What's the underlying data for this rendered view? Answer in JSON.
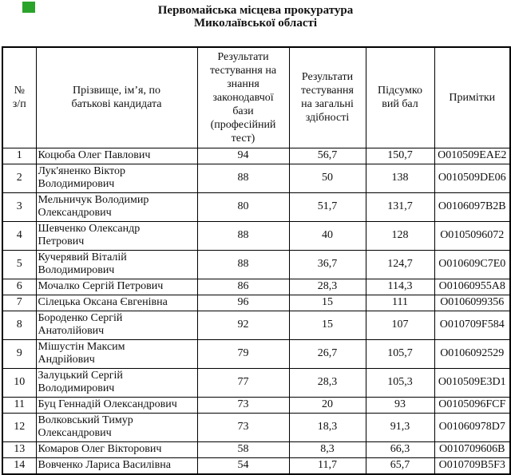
{
  "title": {
    "line1": "Первомайська місцева прокуратура",
    "line2": "Миколаївської області"
  },
  "marker": {
    "color": "#2aa32a"
  },
  "table": {
    "headers": [
      "№\nз/п",
      "Прізвище, ім’я, по\nбатькові кандидата",
      "Результати\nтестування на\nзнання\nзаконодавчої\nбази\n(професійний\nтест)",
      "Результати\nтестування\nна загальні\nздібності",
      "Підсумко\nвий бал",
      "Примітки"
    ],
    "rows": [
      {
        "num": "1",
        "name": "Коцюба Олег Павлович",
        "prof_test": "94",
        "general": "56,7",
        "total": "150,7",
        "note": "O010509EAE2"
      },
      {
        "num": "2",
        "name": "Лук'яненко Віктор\nВолодимирович",
        "prof_test": "88",
        "general": "50",
        "total": "138",
        "note": "O010509DE06"
      },
      {
        "num": "3",
        "name": "Мельничук Володимир\nОлександрович",
        "prof_test": "80",
        "general": "51,7",
        "total": "131,7",
        "note": "O0106097B2B"
      },
      {
        "num": "4",
        "name": "Шевченко Олександр\nПетрович",
        "prof_test": "88",
        "general": "40",
        "total": "128",
        "note": "O0105096072"
      },
      {
        "num": "5",
        "name": "Кучерявий Віталій\nВолодимирович",
        "prof_test": "88",
        "general": "36,7",
        "total": "124,7",
        "note": "O010609C7E0"
      },
      {
        "num": "6",
        "name": "Мочалко Сергій Петрович",
        "prof_test": "86",
        "general": "28,3",
        "total": "114,3",
        "note": "O01060955A8"
      },
      {
        "num": "7",
        "name": "Сілецька Оксана Євгенівна",
        "prof_test": "96",
        "general": "15",
        "total": "111",
        "note": "O0106099356"
      },
      {
        "num": "8",
        "name": "Бороденко Сергій\nАнатолійович",
        "prof_test": "92",
        "general": "15",
        "total": "107",
        "note": "O010709F584"
      },
      {
        "num": "9",
        "name": "Мішустін Максим\nАндрійович",
        "prof_test": "79",
        "general": "26,7",
        "total": "105,7",
        "note": "O0106092529"
      },
      {
        "num": "10",
        "name": "Залуцький Сергій\nВолодимирович",
        "prof_test": "77",
        "general": "28,3",
        "total": "105,3",
        "note": "O010509E3D1"
      },
      {
        "num": "11",
        "name": "Буц Геннадій Олександрович",
        "prof_test": "73",
        "general": "20",
        "total": "93",
        "note": "O0105096FCF"
      },
      {
        "num": "12",
        "name": "Волковський Тимур\nОлександрович",
        "prof_test": "73",
        "general": "18,3",
        "total": "91,3",
        "note": "O01060978D7"
      },
      {
        "num": "13",
        "name": "Комаров Олег Вікторович",
        "prof_test": "58",
        "general": "8,3",
        "total": "66,3",
        "note": "O010709606B"
      },
      {
        "num": "14",
        "name": "Вовченко Лариса Василівна",
        "prof_test": "54",
        "general": "11,7",
        "total": "65,7",
        "note": "O010709B5F3"
      }
    ]
  }
}
